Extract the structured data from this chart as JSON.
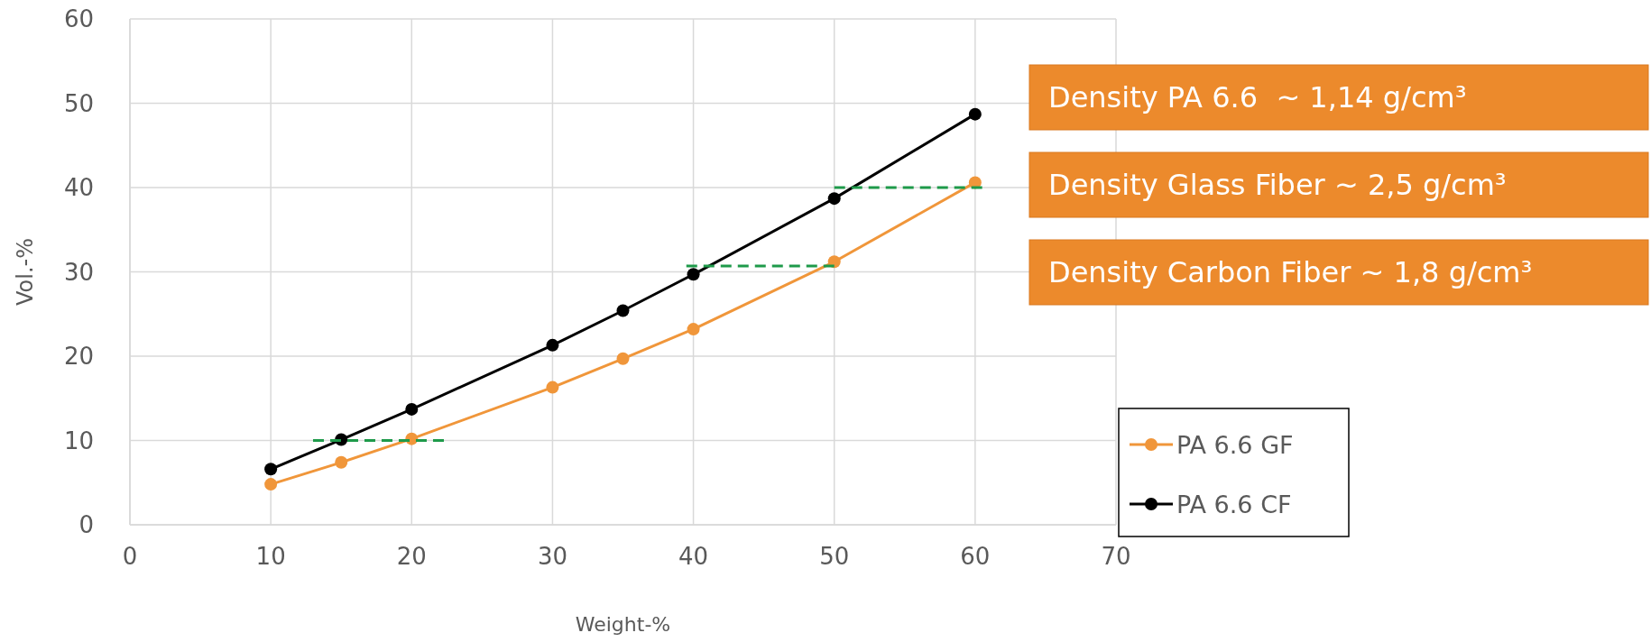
{
  "chart_data": {
    "type": "line",
    "xlabel": "Weight-%",
    "ylabel": "Vol.-%",
    "xlim": [
      0,
      70
    ],
    "xticks": [
      0,
      10,
      20,
      30,
      40,
      50,
      60,
      70
    ],
    "ylim": [
      0,
      60
    ],
    "yticks": [
      0,
      10,
      20,
      30,
      40,
      50,
      60
    ],
    "grid": true,
    "legend": "bottom right",
    "marker": "circle",
    "line_style": "solid",
    "series": [
      {
        "name": "PA 6.6 GF",
        "color": "#f0963a",
        "x": [
          10,
          15,
          20,
          30,
          35,
          40,
          50,
          60
        ],
        "values": [
          4.8,
          7.4,
          10.2,
          16.3,
          19.7,
          23.2,
          31.2,
          40.6
        ]
      },
      {
        "name": "PA 6.6 CF",
        "color": "#000000",
        "x": [
          10,
          15,
          20,
          30,
          35,
          40,
          50,
          60
        ],
        "values": [
          6.6,
          10.1,
          13.7,
          21.3,
          25.4,
          29.7,
          38.7,
          48.7
        ]
      },
      {
        "color": "#1e9a4a",
        "x": [
          13,
          22.5
        ],
        "values": [
          10,
          10
        ],
        "marker": "none",
        "line_style": "dashed"
      },
      {
        "color": "#1e9a4a",
        "x": [
          39.5,
          50
        ],
        "values": [
          30.7,
          30.7
        ],
        "marker": "none",
        "line_style": "dashed"
      },
      {
        "color": "#1e9a4a",
        "x": [
          50,
          60.5
        ],
        "values": [
          40,
          40
        ],
        "marker": "none",
        "line_style": "dashed"
      }
    ],
    "annotations": [
      "Density PA 6.6  ~ 1,14 g/cm³",
      "Density Glass Fiber ~ 2,5 g/cm³",
      "Density Carbon Fiber ~ 1,8 g/cm³"
    ]
  }
}
